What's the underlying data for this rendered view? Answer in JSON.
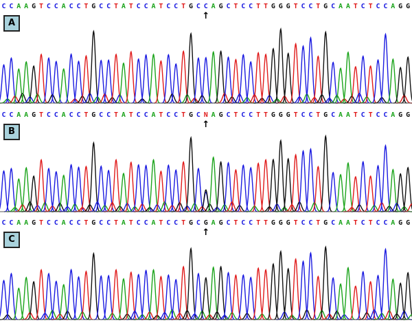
{
  "chart_data": [
    {
      "type": "chromatogram",
      "label": "A",
      "sequence": "CCAAGTCCACCTGCCTATCCATCCTGCCAGCTCCTTGGGTCCTGCAATCTCCAGG",
      "arrow_position": 28,
      "mixed_position": null
    },
    {
      "type": "chromatogram",
      "label": "B",
      "sequence": "CCAAGTCCACCTGCCTATCCATCCTGCNAGCTCCTTGGGTCCTGCAATCTCCAGG",
      "arrow_position": 28,
      "mixed_position": {
        "index": 28,
        "bases": [
          "C",
          "G"
        ]
      }
    },
    {
      "type": "chromatogram",
      "label": "C",
      "sequence": "CCAAGTCCACCTGCCTATCCATCCTGCGAGCTCCTTGGGTCCTGCAATCTCCAGG",
      "arrow_position": 28,
      "mixed_position": null
    }
  ],
  "peak_heights": [
    0.55,
    0.62,
    0.45,
    0.58,
    0.5,
    0.7,
    0.62,
    0.55,
    0.48,
    0.66,
    0.6,
    0.65,
    0.95,
    0.6,
    0.58,
    0.7,
    0.55,
    0.68,
    0.62,
    0.65,
    0.7,
    0.58,
    0.64,
    0.55,
    0.7,
    1.0,
    0.62,
    0.6,
    0.72,
    0.7,
    0.66,
    0.6,
    0.64,
    0.58,
    0.68,
    0.7,
    0.75,
    0.98,
    0.7,
    0.8,
    0.82,
    0.9,
    0.62,
    1.0,
    0.55,
    0.5,
    0.7,
    0.48,
    0.66,
    0.5,
    0.62,
    0.95,
    0.58,
    0.5,
    0.62
  ],
  "colors": {
    "A": "#1aa31a",
    "C": "#1a1ae0",
    "G": "#111111",
    "T": "#e01a1a",
    "N": "#e01a1a"
  },
  "arrow_glyph": "↑"
}
